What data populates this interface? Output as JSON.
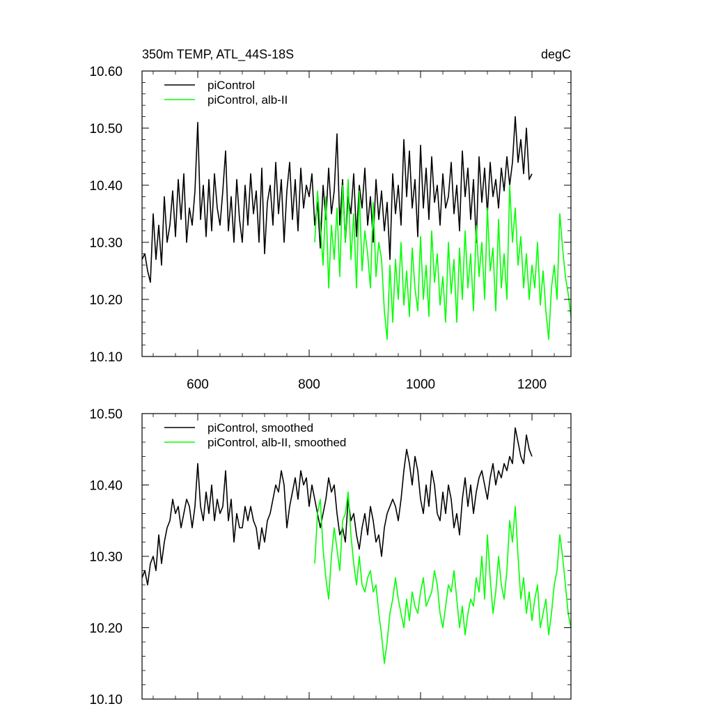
{
  "colors": {
    "control": "#000000",
    "albII": "#00ff00",
    "axis": "#000000"
  },
  "chart_data": [
    {
      "type": "line",
      "title": "350m TEMP, ATL_44S-18S",
      "units": "degC",
      "xlabel": "",
      "ylabel": "",
      "xlim": [
        500,
        1270
      ],
      "ylim": [
        10.1,
        10.6
      ],
      "xticks": [
        600,
        800,
        1000,
        1200
      ],
      "xtick_labels": [
        "600",
        "800",
        "1000",
        "1200"
      ],
      "yticks": [
        10.1,
        10.2,
        10.3,
        10.4,
        10.5,
        10.6
      ],
      "ytick_labels": [
        "10.10",
        "10.20",
        "10.30",
        "10.40",
        "10.50",
        "10.60"
      ],
      "legend": [
        "piControl",
        "piControl, alb-II"
      ],
      "legend_position": "top-left",
      "series": [
        {
          "name": "piControl",
          "color": "#000000",
          "x": [
            500,
            505,
            510,
            515,
            520,
            525,
            530,
            535,
            540,
            545,
            550,
            555,
            560,
            565,
            570,
            575,
            580,
            585,
            590,
            595,
            600,
            605,
            610,
            615,
            620,
            625,
            630,
            635,
            640,
            645,
            650,
            655,
            660,
            665,
            670,
            675,
            680,
            685,
            690,
            695,
            700,
            705,
            710,
            715,
            720,
            725,
            730,
            735,
            740,
            745,
            750,
            755,
            760,
            765,
            770,
            775,
            780,
            785,
            790,
            795,
            800,
            805,
            810,
            815,
            820,
            825,
            830,
            835,
            840,
            845,
            850,
            855,
            860,
            865,
            870,
            875,
            880,
            885,
            890,
            895,
            900,
            905,
            910,
            915,
            920,
            925,
            930,
            935,
            940,
            945,
            950,
            955,
            960,
            965,
            970,
            975,
            980,
            985,
            990,
            995,
            1000,
            1005,
            1010,
            1015,
            1020,
            1025,
            1030,
            1035,
            1040,
            1045,
            1050,
            1055,
            1060,
            1065,
            1070,
            1075,
            1080,
            1085,
            1090,
            1095,
            1100,
            1105,
            1110,
            1115,
            1120,
            1125,
            1130,
            1135,
            1140,
            1145,
            1150,
            1155,
            1160,
            1165,
            1170,
            1175,
            1180,
            1185,
            1190,
            1195,
            1200
          ],
          "values": [
            10.27,
            10.28,
            10.25,
            10.23,
            10.35,
            10.27,
            10.33,
            10.26,
            10.38,
            10.3,
            10.33,
            10.39,
            10.31,
            10.41,
            10.34,
            10.42,
            10.3,
            10.36,
            10.33,
            10.39,
            10.51,
            10.34,
            10.4,
            10.31,
            10.41,
            10.32,
            10.42,
            10.36,
            10.33,
            10.39,
            10.46,
            10.32,
            10.38,
            10.3,
            10.41,
            10.34,
            10.3,
            10.4,
            10.33,
            10.42,
            10.35,
            10.39,
            10.3,
            10.43,
            10.28,
            10.37,
            10.4,
            10.33,
            10.44,
            10.35,
            10.41,
            10.3,
            10.39,
            10.44,
            10.34,
            10.41,
            10.32,
            10.43,
            10.36,
            10.4,
            10.38,
            10.42,
            10.33,
            10.37,
            10.29,
            10.4,
            10.34,
            10.43,
            10.35,
            10.39,
            10.49,
            10.33,
            10.41,
            10.3,
            10.38,
            10.35,
            10.42,
            10.31,
            10.4,
            10.36,
            10.43,
            10.33,
            10.38,
            10.3,
            10.41,
            10.34,
            10.39,
            10.32,
            10.37,
            10.27,
            10.42,
            10.35,
            10.4,
            10.33,
            10.48,
            10.38,
            10.46,
            10.36,
            10.41,
            10.31,
            10.47,
            10.36,
            10.43,
            10.34,
            10.45,
            10.37,
            10.4,
            10.33,
            10.42,
            10.36,
            10.38,
            10.44,
            10.35,
            10.4,
            10.32,
            10.46,
            10.38,
            10.43,
            10.34,
            10.41,
            10.3,
            10.45,
            10.37,
            10.43,
            10.35,
            10.44,
            10.38,
            10.41,
            10.36,
            10.43,
            10.39,
            10.45,
            10.4,
            10.44,
            10.52,
            10.44,
            10.48,
            10.42,
            10.5,
            10.41,
            10.42
          ]
        },
        {
          "name": "piControl, alb-II",
          "color": "#00ff00",
          "x": [
            810,
            815,
            820,
            825,
            830,
            835,
            840,
            845,
            850,
            855,
            860,
            865,
            870,
            875,
            880,
            885,
            890,
            895,
            900,
            905,
            910,
            915,
            920,
            925,
            930,
            935,
            940,
            945,
            950,
            955,
            960,
            965,
            970,
            975,
            980,
            985,
            990,
            995,
            1000,
            1005,
            1010,
            1015,
            1020,
            1025,
            1030,
            1035,
            1040,
            1045,
            1050,
            1055,
            1060,
            1065,
            1070,
            1075,
            1080,
            1085,
            1090,
            1095,
            1100,
            1105,
            1110,
            1115,
            1120,
            1125,
            1130,
            1135,
            1140,
            1145,
            1150,
            1155,
            1160,
            1165,
            1170,
            1175,
            1180,
            1185,
            1190,
            1195,
            1200,
            1205,
            1210,
            1215,
            1220,
            1225,
            1230,
            1235,
            1240,
            1245,
            1250,
            1255,
            1260,
            1265,
            1270
          ],
          "values": [
            10.3,
            10.39,
            10.33,
            10.26,
            10.38,
            10.22,
            10.33,
            10.27,
            10.36,
            10.24,
            10.4,
            10.3,
            10.41,
            10.27,
            10.35,
            10.22,
            10.39,
            10.25,
            10.32,
            10.28,
            10.22,
            10.37,
            10.24,
            10.3,
            10.27,
            10.18,
            10.13,
            10.26,
            10.16,
            10.27,
            10.2,
            10.3,
            10.19,
            10.25,
            10.17,
            10.29,
            10.22,
            10.18,
            10.31,
            10.2,
            10.26,
            10.17,
            10.32,
            10.23,
            10.28,
            10.19,
            10.24,
            10.16,
            10.3,
            10.21,
            10.27,
            10.16,
            10.29,
            10.2,
            10.32,
            10.22,
            10.28,
            10.18,
            10.33,
            10.24,
            10.3,
            10.2,
            10.36,
            10.25,
            10.29,
            10.18,
            10.34,
            10.22,
            10.28,
            10.2,
            10.4,
            10.3,
            10.36,
            10.26,
            10.31,
            10.22,
            10.28,
            10.2,
            10.26,
            10.22,
            10.3,
            10.19,
            10.25,
            10.18,
            10.13,
            10.22,
            10.26,
            10.2,
            10.35,
            10.29,
            10.24,
            10.21,
            10.17
          ]
        }
      ]
    },
    {
      "type": "line",
      "title": "",
      "xlabel": "",
      "ylabel": "",
      "xlim": [
        500,
        1270
      ],
      "ylim": [
        10.1,
        10.5
      ],
      "xticks": [
        600,
        800,
        1000,
        1200
      ],
      "xtick_labels": [],
      "yticks": [
        10.1,
        10.2,
        10.3,
        10.4,
        10.5
      ],
      "ytick_labels": [
        "10.10",
        "10.20",
        "10.30",
        "10.40",
        "10.50"
      ],
      "legend": [
        "piControl, smoothed",
        "piControl, alb-II, smoothed"
      ],
      "legend_position": "top-left",
      "series": [
        {
          "name": "piControl, smoothed",
          "color": "#000000",
          "x": [
            500,
            505,
            510,
            515,
            520,
            525,
            530,
            535,
            540,
            545,
            550,
            555,
            560,
            565,
            570,
            575,
            580,
            585,
            590,
            595,
            600,
            605,
            610,
            615,
            620,
            625,
            630,
            635,
            640,
            645,
            650,
            655,
            660,
            665,
            670,
            675,
            680,
            685,
            690,
            695,
            700,
            705,
            710,
            715,
            720,
            725,
            730,
            735,
            740,
            745,
            750,
            755,
            760,
            765,
            770,
            775,
            780,
            785,
            790,
            795,
            800,
            805,
            810,
            815,
            820,
            825,
            830,
            835,
            840,
            845,
            850,
            855,
            860,
            865,
            870,
            875,
            880,
            885,
            890,
            895,
            900,
            905,
            910,
            915,
            920,
            925,
            930,
            935,
            940,
            945,
            950,
            955,
            960,
            965,
            970,
            975,
            980,
            985,
            990,
            995,
            1000,
            1005,
            1010,
            1015,
            1020,
            1025,
            1030,
            1035,
            1040,
            1045,
            1050,
            1055,
            1060,
            1065,
            1070,
            1075,
            1080,
            1085,
            1090,
            1095,
            1100,
            1105,
            1110,
            1115,
            1120,
            1125,
            1130,
            1135,
            1140,
            1145,
            1150,
            1155,
            1160,
            1165,
            1170,
            1175,
            1180,
            1185,
            1190,
            1195,
            1200
          ],
          "values": [
            10.27,
            10.28,
            10.26,
            10.29,
            10.3,
            10.28,
            10.33,
            10.29,
            10.32,
            10.34,
            10.35,
            10.38,
            10.36,
            10.37,
            10.34,
            10.36,
            10.38,
            10.37,
            10.34,
            10.37,
            10.43,
            10.37,
            10.35,
            10.39,
            10.36,
            10.4,
            10.35,
            10.38,
            10.36,
            10.37,
            10.42,
            10.35,
            10.38,
            10.32,
            10.36,
            10.34,
            10.34,
            10.37,
            10.35,
            10.37,
            10.35,
            10.34,
            10.31,
            10.34,
            10.32,
            10.35,
            10.36,
            10.38,
            10.4,
            10.39,
            10.42,
            10.4,
            10.34,
            10.37,
            10.39,
            10.41,
            10.38,
            10.42,
            10.4,
            10.41,
            10.37,
            10.4,
            10.38,
            10.36,
            10.34,
            10.36,
            10.38,
            10.41,
            10.39,
            10.4,
            10.36,
            10.33,
            10.34,
            10.32,
            10.38,
            10.35,
            10.36,
            10.33,
            10.31,
            10.34,
            10.36,
            10.33,
            10.37,
            10.35,
            10.32,
            10.33,
            10.3,
            10.34,
            10.36,
            10.37,
            10.38,
            10.37,
            10.35,
            10.38,
            10.42,
            10.45,
            10.43,
            10.4,
            10.44,
            10.42,
            10.38,
            10.36,
            10.4,
            10.37,
            10.42,
            10.4,
            10.36,
            10.35,
            10.39,
            10.36,
            10.4,
            10.38,
            10.34,
            10.36,
            10.33,
            10.38,
            10.41,
            10.37,
            10.4,
            10.36,
            10.39,
            10.41,
            10.42,
            10.4,
            10.38,
            10.41,
            10.43,
            10.4,
            10.42,
            10.41,
            10.43,
            10.42,
            10.44,
            10.43,
            10.48,
            10.46,
            10.44,
            10.43,
            10.47,
            10.45,
            10.44
          ]
        },
        {
          "name": "piControl, alb-II, smoothed",
          "color": "#00ff00",
          "x": [
            810,
            815,
            820,
            825,
            830,
            835,
            840,
            845,
            850,
            855,
            860,
            865,
            870,
            875,
            880,
            885,
            890,
            895,
            900,
            905,
            910,
            915,
            920,
            925,
            930,
            935,
            940,
            945,
            950,
            955,
            960,
            965,
            970,
            975,
            980,
            985,
            990,
            995,
            1000,
            1005,
            1010,
            1015,
            1020,
            1025,
            1030,
            1035,
            1040,
            1045,
            1050,
            1055,
            1060,
            1065,
            1070,
            1075,
            1080,
            1085,
            1090,
            1095,
            1100,
            1105,
            1110,
            1115,
            1120,
            1125,
            1130,
            1135,
            1140,
            1145,
            1150,
            1155,
            1160,
            1165,
            1170,
            1175,
            1180,
            1185,
            1190,
            1195,
            1200,
            1205,
            1210,
            1215,
            1220,
            1225,
            1230,
            1235,
            1240,
            1245,
            1250,
            1255,
            1260,
            1265,
            1270
          ],
          "values": [
            10.29,
            10.36,
            10.38,
            10.31,
            10.27,
            10.24,
            10.3,
            10.34,
            10.31,
            10.28,
            10.35,
            10.36,
            10.39,
            10.33,
            10.29,
            10.26,
            10.3,
            10.26,
            10.25,
            10.27,
            10.28,
            10.25,
            10.26,
            10.22,
            10.19,
            10.15,
            10.18,
            10.22,
            10.24,
            10.27,
            10.24,
            10.22,
            10.2,
            10.24,
            10.21,
            10.25,
            10.23,
            10.22,
            10.25,
            10.27,
            10.23,
            10.24,
            10.25,
            10.28,
            10.26,
            10.22,
            10.2,
            10.23,
            10.26,
            10.25,
            10.28,
            10.24,
            10.2,
            10.23,
            10.19,
            10.22,
            10.24,
            10.23,
            10.27,
            10.25,
            10.3,
            10.24,
            10.33,
            10.27,
            10.22,
            10.25,
            10.3,
            10.26,
            10.24,
            10.28,
            10.35,
            10.32,
            10.37,
            10.3,
            10.24,
            10.27,
            10.22,
            10.25,
            10.21,
            10.24,
            10.26,
            10.2,
            10.22,
            10.24,
            10.19,
            10.22,
            10.26,
            10.28,
            10.33,
            10.3,
            10.26,
            10.22,
            10.2
          ]
        }
      ]
    }
  ]
}
